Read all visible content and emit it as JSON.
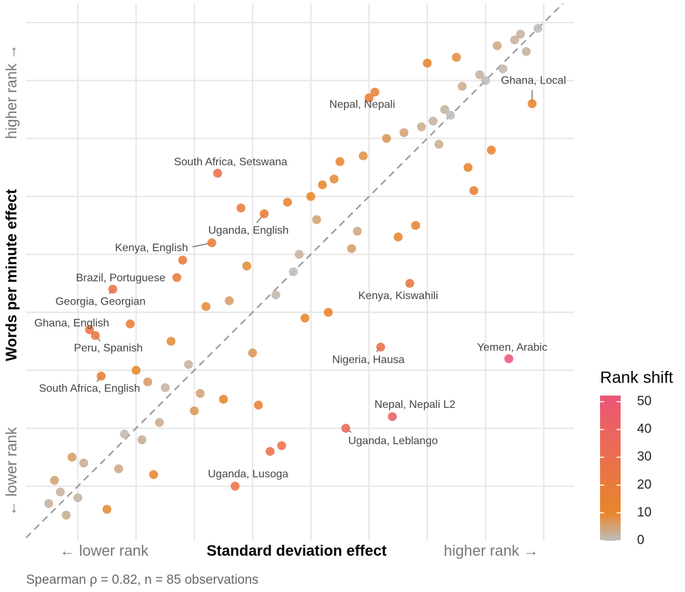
{
  "chart_data": {
    "type": "scatter",
    "x_axis_label": "Standard deviation effect",
    "y_axis_label": "Words per minute effect",
    "x_low_label": "← lower rank",
    "x_high_label": "higher rank →",
    "y_low_label": "← lower rank",
    "y_high_label": "higher rank →",
    "caption": "Spearman ρ = 0.82,  n = 85 observations",
    "xlim": [
      -3.9,
      90.2
    ],
    "ylim": [
      -4.4,
      88.3
    ],
    "xticks": [
      5,
      15,
      25,
      35,
      45,
      55,
      65,
      75,
      85
    ],
    "yticks": [
      5,
      15,
      25,
      35,
      45,
      55,
      65,
      75,
      85
    ],
    "grid": true,
    "reference_line": "y=x",
    "x": [
      84,
      81,
      80,
      77,
      82,
      70,
      65,
      78,
      74,
      75,
      71,
      56,
      55,
      83,
      68,
      69,
      66,
      64,
      61,
      58,
      67,
      76,
      54,
      50,
      72,
      29,
      49,
      47,
      73,
      45,
      41,
      33,
      37,
      46,
      63,
      53,
      60,
      28,
      52,
      43,
      23,
      34,
      42,
      22,
      62,
      11,
      39,
      31,
      27,
      48,
      44,
      14,
      7,
      8,
      21,
      57,
      35,
      79,
      24,
      15,
      9,
      17,
      20,
      26,
      30,
      36,
      25,
      59,
      19,
      51,
      13,
      16,
      40,
      38,
      4,
      6,
      12,
      18,
      1,
      32,
      2,
      5,
      0,
      10,
      3
    ],
    "y": [
      84,
      83,
      82,
      81,
      80,
      79,
      78,
      77,
      76,
      75,
      74,
      73,
      72,
      71,
      70,
      69,
      68,
      67,
      66,
      65,
      64,
      63,
      62,
      61,
      60,
      59,
      58,
      57,
      56,
      55,
      54,
      53,
      52,
      51,
      50,
      49,
      48,
      47,
      46,
      45,
      44,
      43,
      42,
      41,
      40,
      39,
      38,
      37,
      36,
      35,
      34,
      33,
      32,
      31,
      30,
      29,
      28,
      27,
      26,
      25,
      24,
      23,
      22,
      21,
      20,
      19,
      18,
      17,
      16,
      15,
      14,
      13,
      12,
      11,
      10,
      9,
      8,
      7,
      6,
      5,
      4,
      3,
      2,
      1,
      0
    ],
    "labels": [
      null,
      null,
      null,
      null,
      null,
      null,
      null,
      null,
      null,
      null,
      null,
      null,
      "Nepal, Nepali",
      "Ghana, Local",
      null,
      null,
      null,
      null,
      null,
      null,
      null,
      null,
      null,
      null,
      null,
      "South Africa, Setswana",
      null,
      null,
      null,
      null,
      null,
      null,
      "Uganda, English",
      null,
      null,
      null,
      null,
      "Kenya, English",
      null,
      null,
      null,
      null,
      null,
      "Brazil, Portuguese",
      "Kenya, Kiswahili",
      "Georgia, Georgian",
      null,
      null,
      null,
      null,
      null,
      null,
      "Ghana, English",
      "Peru, Spanish",
      null,
      "Nigeria, Hausa",
      null,
      "Yemen, Arabic",
      null,
      null,
      "South Africa, English",
      null,
      null,
      null,
      null,
      null,
      null,
      "Nepal, Nepali L2",
      null,
      "Uganda, Leblango",
      null,
      null,
      null,
      null,
      null,
      null,
      null,
      null,
      null,
      "Uganda, Lusoga",
      null,
      null,
      null,
      null,
      null
    ],
    "color_scale": {
      "title": "Rank shift",
      "lim": [
        0,
        52.2
      ],
      "ticks": [
        0,
        10,
        20,
        30,
        40,
        50
      ],
      "stops": [
        0,
        10,
        52.2
      ],
      "colors": [
        "#bdbdbd",
        "#e8862a",
        "#ec5577"
      ]
    }
  }
}
